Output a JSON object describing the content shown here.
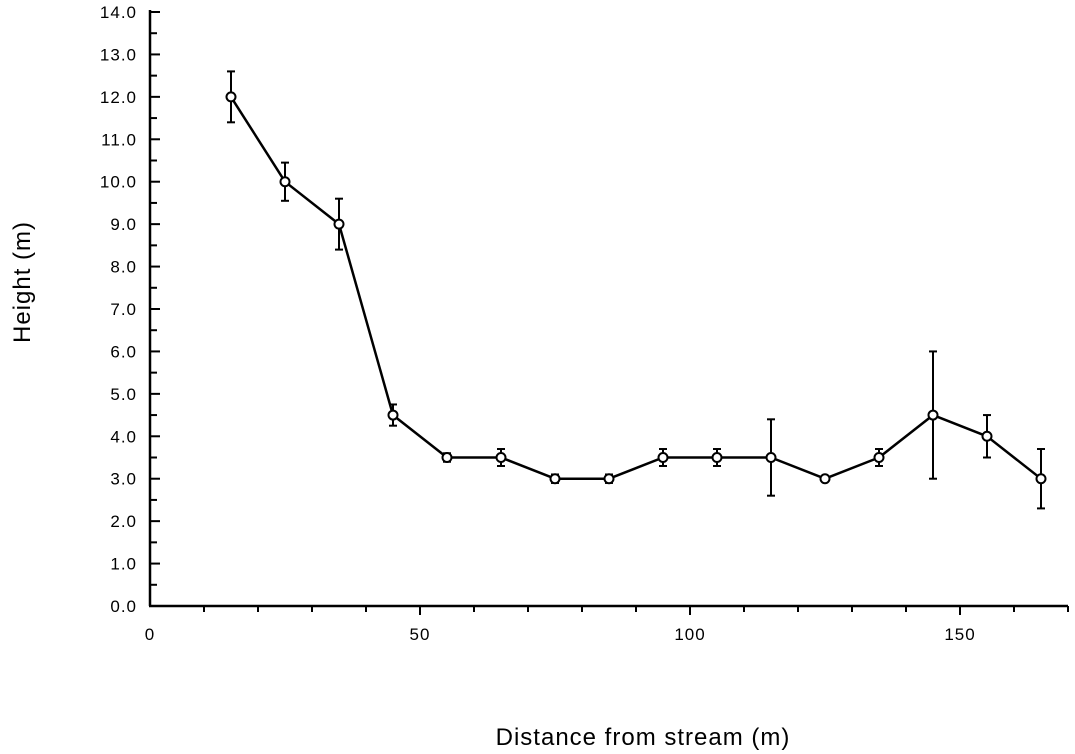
{
  "chart_data": {
    "type": "line",
    "title": "",
    "xlabel": "Distance from stream (m)",
    "ylabel": "Height (m)",
    "xlim": [
      0,
      170
    ],
    "ylim": [
      0,
      14
    ],
    "x_tick_labels": [
      {
        "value": 0,
        "label": "0"
      },
      {
        "value": 50,
        "label": "50"
      },
      {
        "value": 100,
        "label": "100"
      },
      {
        "value": 150,
        "label": "150"
      }
    ],
    "y_tick_labels": [
      {
        "value": 0,
        "label": "0.0"
      },
      {
        "value": 1,
        "label": "1.0"
      },
      {
        "value": 2,
        "label": "2.0"
      },
      {
        "value": 3,
        "label": "3.0"
      },
      {
        "value": 4,
        "label": "4.0"
      },
      {
        "value": 5,
        "label": "5.0"
      },
      {
        "value": 6,
        "label": "6.0"
      },
      {
        "value": 7,
        "label": "7.0"
      },
      {
        "value": 8,
        "label": "8.0"
      },
      {
        "value": 9,
        "label": "9.0"
      },
      {
        "value": 10,
        "label": "10.0"
      },
      {
        "value": 11,
        "label": "11.0"
      },
      {
        "value": 12,
        "label": "12.0"
      },
      {
        "value": 13,
        "label": "13.0"
      },
      {
        "value": 14,
        "label": "14.0"
      }
    ],
    "x_minor_tick_step": 10,
    "y_minor_tick_step": 0.5,
    "grid": false,
    "series": [
      {
        "marker": "open-circle",
        "points": [
          {
            "x": 15,
            "y": 12.0,
            "err": 0.6
          },
          {
            "x": 25,
            "y": 10.0,
            "err": 0.45
          },
          {
            "x": 35,
            "y": 9.0,
            "err": 0.6
          },
          {
            "x": 45,
            "y": 4.5,
            "err": 0.25
          },
          {
            "x": 55,
            "y": 3.5,
            "err": 0.1
          },
          {
            "x": 65,
            "y": 3.5,
            "err": 0.2
          },
          {
            "x": 75,
            "y": 3.0,
            "err": 0.1
          },
          {
            "x": 85,
            "y": 3.0,
            "err": 0.1
          },
          {
            "x": 95,
            "y": 3.5,
            "err": 0.2
          },
          {
            "x": 105,
            "y": 3.5,
            "err": 0.2
          },
          {
            "x": 115,
            "y": 3.5,
            "err": 0.9
          },
          {
            "x": 125,
            "y": 3.0,
            "err": 0.05
          },
          {
            "x": 135,
            "y": 3.5,
            "err": 0.2
          },
          {
            "x": 145,
            "y": 4.5,
            "err": 1.5
          },
          {
            "x": 155,
            "y": 4.0,
            "err": 0.5
          },
          {
            "x": 165,
            "y": 3.0,
            "err": 0.7
          }
        ]
      }
    ]
  }
}
